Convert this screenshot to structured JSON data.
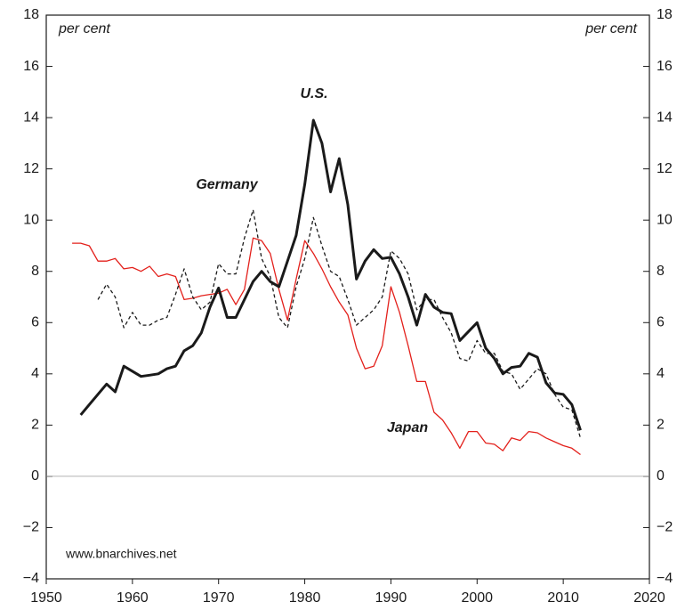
{
  "chart_data": {
    "type": "line",
    "ylabel": "per cent",
    "source": "www.bnarchives.net",
    "xlim": [
      1950,
      2020
    ],
    "xticks": [
      1950,
      1960,
      1970,
      1980,
      1990,
      2000,
      2010,
      2020
    ],
    "ylim": [
      -4,
      18
    ],
    "yticks": [
      {
        "value": -4,
        "label": "−4"
      },
      {
        "value": -2,
        "label": "−2"
      },
      0,
      2,
      4,
      6,
      8,
      10,
      12,
      14,
      16,
      18
    ],
    "hline": 0,
    "series": [
      {
        "name": "U.S.",
        "color": "#1a1a1a",
        "style": "solid",
        "width": 3,
        "x": [
          1954,
          1955,
          1956,
          1957,
          1958,
          1959,
          1960,
          1961,
          1962,
          1963,
          1964,
          1965,
          1966,
          1967,
          1968,
          1969,
          1970,
          1971,
          1972,
          1973,
          1974,
          1975,
          1976,
          1977,
          1978,
          1979,
          1980,
          1981,
          1982,
          1983,
          1984,
          1985,
          1986,
          1987,
          1988,
          1989,
          1990,
          1991,
          1992,
          1993,
          1994,
          1995,
          1996,
          1997,
          1998,
          1999,
          2000,
          2001,
          2002,
          2003,
          2004,
          2005,
          2006,
          2007,
          2008,
          2009,
          2010,
          2011,
          2012
        ],
        "values": [
          2.4,
          2.8,
          3.2,
          3.6,
          3.3,
          4.3,
          4.1,
          3.9,
          3.95,
          4.0,
          4.2,
          4.3,
          4.9,
          5.1,
          5.6,
          6.6,
          7.35,
          6.2,
          6.2,
          6.9,
          7.6,
          8.0,
          7.6,
          7.4,
          8.4,
          9.4,
          11.4,
          13.9,
          13.0,
          11.1,
          12.4,
          10.6,
          7.7,
          8.4,
          8.85,
          8.5,
          8.55,
          7.9,
          7.0,
          5.9,
          7.1,
          6.6,
          6.4,
          6.35,
          5.3,
          5.65,
          6.0,
          5.0,
          4.6,
          4.0,
          4.25,
          4.3,
          4.8,
          4.65,
          3.65,
          3.25,
          3.2,
          2.8,
          1.8
        ]
      },
      {
        "name": "Germany",
        "color": "#1a1a1a",
        "style": "dashed",
        "width": 1.3,
        "x": [
          1956,
          1957,
          1958,
          1959,
          1960,
          1961,
          1962,
          1963,
          1964,
          1965,
          1966,
          1967,
          1968,
          1969,
          1970,
          1971,
          1972,
          1973,
          1974,
          1975,
          1976,
          1977,
          1978,
          1979,
          1980,
          1981,
          1982,
          1983,
          1984,
          1985,
          1986,
          1987,
          1988,
          1989,
          1990,
          1991,
          1992,
          1993,
          1994,
          1995,
          1996,
          1997,
          1998,
          1999,
          2000,
          2001,
          2002,
          2003,
          2004,
          2005,
          2006,
          2007,
          2008,
          2009,
          2010,
          2011,
          2012
        ],
        "values": [
          6.9,
          7.5,
          7.0,
          5.8,
          6.4,
          5.9,
          5.9,
          6.1,
          6.2,
          7.1,
          8.1,
          7.0,
          6.5,
          6.8,
          8.3,
          7.9,
          7.9,
          9.3,
          10.4,
          8.5,
          7.8,
          6.2,
          5.8,
          7.4,
          8.5,
          10.1,
          9.0,
          8.0,
          7.8,
          6.9,
          5.9,
          6.2,
          6.5,
          7.0,
          8.8,
          8.5,
          7.9,
          6.5,
          6.9,
          6.9,
          6.2,
          5.6,
          4.6,
          4.5,
          5.3,
          4.8,
          4.8,
          4.1,
          4.0,
          3.4,
          3.8,
          4.2,
          4.0,
          3.2,
          2.7,
          2.6,
          1.5
        ]
      },
      {
        "name": "Japan",
        "color": "#e3201b",
        "style": "solid",
        "width": 1.3,
        "x": [
          1953,
          1954,
          1955,
          1956,
          1957,
          1958,
          1959,
          1960,
          1961,
          1962,
          1963,
          1964,
          1965,
          1966,
          1967,
          1968,
          1969,
          1970,
          1971,
          1972,
          1973,
          1974,
          1975,
          1976,
          1977,
          1978,
          1979,
          1980,
          1981,
          1982,
          1983,
          1984,
          1985,
          1986,
          1987,
          1988,
          1989,
          1990,
          1991,
          1992,
          1993,
          1994,
          1995,
          1996,
          1997,
          1998,
          1999,
          2000,
          2001,
          2002,
          2003,
          2004,
          2005,
          2006,
          2007,
          2008,
          2009,
          2010,
          2011,
          2012
        ],
        "values": [
          9.1,
          9.1,
          9.0,
          8.4,
          8.4,
          8.5,
          8.1,
          8.15,
          8.0,
          8.2,
          7.8,
          7.9,
          7.8,
          6.9,
          6.95,
          7.05,
          7.1,
          7.15,
          7.3,
          6.7,
          7.3,
          9.3,
          9.2,
          8.7,
          7.3,
          6.1,
          7.7,
          9.2,
          8.7,
          8.1,
          7.4,
          6.8,
          6.3,
          5.0,
          4.2,
          4.3,
          5.1,
          7.4,
          6.4,
          5.1,
          3.7,
          3.7,
          2.5,
          2.2,
          1.7,
          1.1,
          1.75,
          1.75,
          1.3,
          1.25,
          1.0,
          1.5,
          1.4,
          1.75,
          1.7,
          1.5,
          1.35,
          1.2,
          1.1,
          0.85
        ]
      }
    ]
  }
}
